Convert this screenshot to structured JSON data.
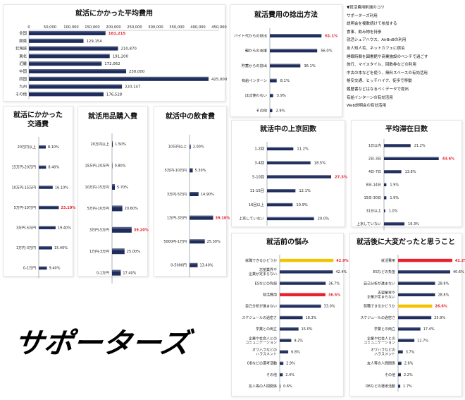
{
  "colors": {
    "bar": "#1f2d5c",
    "red": "#e8202a",
    "yellow": "#f2c400",
    "label_red": "#e8202a"
  },
  "logo": {
    "text": "サポーターズ"
  },
  "tips": {
    "title": "▼就活費用削減のコツ",
    "items": [
      "サポーターズ利用",
      "説明会を複数続けて参加する",
      "食事、飲み物を持参",
      "就活シェアハウス、AirBnBの利用",
      "友人知人宅、ネットカフェに宿泊",
      "睡眠時間を図書館や商業施設のベンチで過ごす",
      "旅行、マイスタイル、回数券などの利用",
      "中古の本などを使う、無料スペースの有効活用",
      "格安交通、ヒッチハイク、徒歩で移動",
      "履歴書などはなるべくデータで提出",
      "有給インターンの有効活用",
      "Web説明会の有効活用"
    ]
  },
  "chart_data": [
    {
      "id": "avg-cost",
      "type": "bar",
      "orientation": "horizontal",
      "title": "就活にかかった平均費用",
      "categories": [
        "全国",
        "関東",
        "北海道",
        "東北",
        "近畿",
        "中国",
        "四国",
        "九州",
        "その他"
      ],
      "values": [
        181215,
        129154,
        210870,
        191200,
        172062,
        230000,
        425000,
        220147,
        176528
      ],
      "value_labels": [
        "181,215",
        "129,154",
        "210,870",
        "191,200",
        "172,062",
        "230,000",
        "425,000",
        "220,147",
        "176,528"
      ],
      "highlight": [
        0
      ],
      "xlim": [
        0,
        450000
      ],
      "ticks": [
        "0",
        "50,000",
        "100,000",
        "150,000",
        "200,000",
        "250,000",
        "300,000",
        "350,000",
        "400,000",
        "450,000"
      ]
    },
    {
      "id": "funding",
      "type": "bar",
      "orientation": "horizontal",
      "title": "就活費用の捻出方法",
      "categories": [
        "バイト代からの捻出",
        "親からの支援",
        "貯蓄からの捻出",
        "有給インターン",
        "ほぼ使わない",
        "その他"
      ],
      "values": [
        61.1,
        56.0,
        36.1,
        8.1,
        3.9,
        2.9
      ],
      "value_labels": [
        "61.1%",
        "56.0%",
        "36.1%",
        "8.1%",
        "3.9%",
        "2.9%"
      ],
      "highlight": [
        0
      ],
      "xlim": [
        0,
        70
      ]
    },
    {
      "id": "transport",
      "type": "bar",
      "orientation": "horizontal",
      "title": "就活にかかった\n交通費",
      "categories": [
        "20万円以上",
        "15万円-20万円",
        "10万円-15万円",
        "5万円-10万円",
        "3万円-5万円",
        "1万円-3万円",
        "0-1万円"
      ],
      "values": [
        8.1,
        8.4,
        16.1,
        23.1,
        19.4,
        15.4,
        9.4
      ],
      "value_labels": [
        "8.10%",
        "8.40%",
        "16.10%",
        "23.10%",
        "19.40%",
        "15.40%",
        "9.40%"
      ],
      "highlight": [
        3
      ],
      "xlim": [
        0,
        26
      ]
    },
    {
      "id": "supplies",
      "type": "bar",
      "orientation": "horizontal",
      "title": "就活用品購入費",
      "categories": [
        "20万円以上",
        "15万円-20万円",
        "10万円-15万円",
        "5万円-10万円",
        "3万円-5万円",
        "1万円-3万円",
        "0-1万円"
      ],
      "values": [
        1.5,
        0.8,
        5.7,
        20.6,
        39.2,
        25.0,
        17.4
      ],
      "value_labels": [
        "1.50%",
        "0.80%",
        "5.70%",
        "20.60%",
        "39.20%",
        "25.00%",
        "17.40%"
      ],
      "highlight": [
        4
      ],
      "xlim": [
        0,
        45
      ]
    },
    {
      "id": "food",
      "type": "bar",
      "orientation": "horizontal",
      "title": "就活中の飲食費",
      "categories": [
        "10万円以上",
        "5万円-10万円",
        "3万円-5万円",
        "1万円-3万円",
        "5000円-1万円",
        "0-5000円"
      ],
      "values": [
        2.0,
        5.3,
        14.9,
        39.1,
        25.3,
        13.4
      ],
      "value_labels": [
        "2.00%",
        "5.30%",
        "14.90%",
        "39.10%",
        "25.30%",
        "13.40%"
      ],
      "highlight": [
        3
      ],
      "xlim": [
        0,
        42
      ]
    },
    {
      "id": "trips",
      "type": "bar",
      "orientation": "horizontal",
      "title": "就活中の上京回数",
      "categories": [
        "1-2回",
        "3-4回",
        "5-10回",
        "11-15回",
        "16回以上",
        "上京していない"
      ],
      "values": [
        11.2,
        18.5,
        27.3,
        12.1,
        10.9,
        20.0
      ],
      "value_labels": [
        "11.2%",
        "18.5%",
        "27.3%",
        "12.1%",
        "10.9%",
        "20.0%"
      ],
      "highlight": [
        2
      ],
      "xlim": [
        0,
        30
      ]
    },
    {
      "id": "stay",
      "type": "bar",
      "orientation": "horizontal",
      "title": "平均滞在日数",
      "categories": [
        "1日以内",
        "2日-3日",
        "4日-7日",
        "8日-14日",
        "15日-30日",
        "31日以上",
        "上京していない"
      ],
      "values": [
        21.2,
        43.6,
        13.8,
        1.9,
        1.9,
        1.0,
        16.3
      ],
      "value_labels": [
        "21.2%",
        "43.6%",
        "13.8%",
        "1.9%",
        "1.9%",
        "1.0%",
        "16.3%"
      ],
      "highlight": [
        1
      ],
      "xlim": [
        0,
        46
      ]
    },
    {
      "id": "worries-before",
      "type": "bar",
      "orientation": "horizontal",
      "title": "就活前の悩み",
      "categories": [
        "就職できるかどうか",
        "志望業界や\n企業が定まらない",
        "ESなどの負担",
        "就活費用",
        "自己分析が進まない",
        "スケジュールの過密さ",
        "学業との両立",
        "企業や社会人との\nコミュニケーション",
        "オワハラなどの\nハラスメント",
        "OBなどの選考活動",
        "その他",
        "友人等の人間関係"
      ],
      "values": [
        42.9,
        42.4,
        36.7,
        36.5,
        33.0,
        18.3,
        15.0,
        9.2,
        6.8,
        2.9,
        2.4,
        0.6
      ],
      "value_labels": [
        "42.9%",
        "42.4%",
        "36.7%",
        "36.5%",
        "33.0%",
        "18.3%",
        "15.0%",
        "9.2%",
        "6.8%",
        "2.9%",
        "2.4%",
        "0.6%"
      ],
      "bar_colors": [
        "yellow",
        "bar",
        "bar",
        "red",
        "bar",
        "bar",
        "bar",
        "bar",
        "bar",
        "bar",
        "bar",
        "bar"
      ],
      "highlight": [
        0,
        3
      ],
      "xlim": [
        0,
        45
      ]
    },
    {
      "id": "hard-after",
      "type": "bar",
      "orientation": "horizontal",
      "title": "就活後に大変だったと思うこと",
      "categories": [
        "就活費用",
        "ESなどの負担",
        "自己分析が進まない",
        "志望業界や\n企業が定まらない",
        "就職できるかどうか",
        "スケジュールの過密さ",
        "学業との両立",
        "企業や社会人との\nコミュニケーション",
        "オワハラなどの\nハラスメント",
        "友人等の人間関係",
        "その他",
        "OBなどの選考活動"
      ],
      "values": [
        42.2,
        40.6,
        28.8,
        28.8,
        26.6,
        25.9,
        17.4,
        12.7,
        3.7,
        2.6,
        2.2,
        1.7
      ],
      "value_labels": [
        "42.2%",
        "40.6%",
        "28.8%",
        "28.8%",
        "26.6%",
        "25.9%",
        "17.4%",
        "12.7%",
        "3.7%",
        "2.6%",
        "2.2%",
        "1.7%"
      ],
      "bar_colors": [
        "red",
        "bar",
        "bar",
        "bar",
        "yellow",
        "bar",
        "bar",
        "bar",
        "bar",
        "bar",
        "bar",
        "bar"
      ],
      "highlight": [
        0,
        4
      ],
      "xlim": [
        0,
        45
      ]
    }
  ]
}
